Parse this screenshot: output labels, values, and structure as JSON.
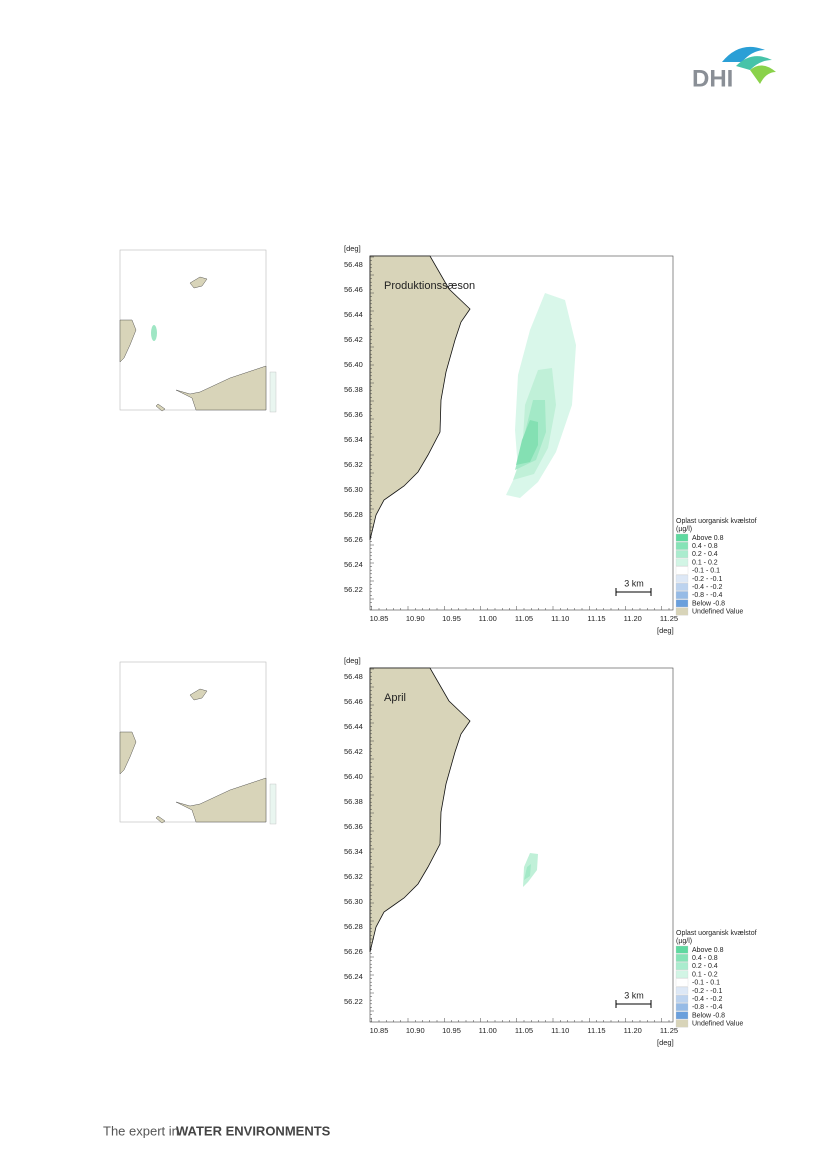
{
  "header": {
    "logo": "DHI"
  },
  "maps": [
    {
      "title": "Produktionssæson",
      "y_unit": "[deg]",
      "x_unit": "[deg]",
      "yticks": [
        "56.48",
        "56.46",
        "56.44",
        "56.42",
        "56.40",
        "56.38",
        "56.36",
        "56.34",
        "56.32",
        "56.30",
        "56.28",
        "56.26",
        "56.24",
        "56.22"
      ],
      "xticks": [
        "10.85",
        "10.90",
        "10.95",
        "11.00",
        "11.05",
        "11.10",
        "11.15",
        "11.20",
        "11.25"
      ],
      "scale_bar": "3 km",
      "legend": {
        "title": "Oplast uorganisk kvælstof",
        "unit": "(µg/l)",
        "items": [
          {
            "label": "Above  0.8",
            "color": "#5fd9a0"
          },
          {
            "label": "0.4 -  0.8",
            "color": "#86e3b7"
          },
          {
            "label": "0.2 -  0.4",
            "color": "#aaecce"
          },
          {
            "label": "0.1 -  0.2",
            "color": "#d2f5e5"
          },
          {
            "label": "-0.1 -  0.1",
            "color": "#ffffff"
          },
          {
            "label": "-0.2 - -0.1",
            "color": "#dde8f6"
          },
          {
            "label": "-0.4 - -0.2",
            "color": "#bcd3ef"
          },
          {
            "label": "-0.8 - -0.4",
            "color": "#96bbe6"
          },
          {
            "label": "Below -0.8",
            "color": "#6a9fdc"
          },
          {
            "label": "Undefined Value",
            "color": "#d8d4b9"
          }
        ]
      }
    },
    {
      "title": "April",
      "y_unit": "[deg]",
      "x_unit": "[deg]",
      "yticks": [
        "56.48",
        "56.46",
        "56.44",
        "56.42",
        "56.40",
        "56.38",
        "56.36",
        "56.34",
        "56.32",
        "56.30",
        "56.28",
        "56.26",
        "56.24",
        "56.22"
      ],
      "xticks": [
        "10.85",
        "10.90",
        "10.95",
        "11.00",
        "11.05",
        "11.10",
        "11.15",
        "11.20",
        "11.25"
      ],
      "scale_bar": "3 km",
      "legend": {
        "title": "Oplast uorganisk kvælstof",
        "unit": "(µg/l)",
        "items": [
          {
            "label": "Above  0.8",
            "color": "#5fd9a0"
          },
          {
            "label": "0.4 -  0.8",
            "color": "#86e3b7"
          },
          {
            "label": "0.2 -  0.4",
            "color": "#aaecce"
          },
          {
            "label": "0.1 -  0.2",
            "color": "#d2f5e5"
          },
          {
            "label": "-0.1 -  0.1",
            "color": "#ffffff"
          },
          {
            "label": "-0.2 - -0.1",
            "color": "#dde8f6"
          },
          {
            "label": "-0.4 - -0.2",
            "color": "#bcd3ef"
          },
          {
            "label": "-0.8 - -0.4",
            "color": "#96bbe6"
          },
          {
            "label": "Below -0.8",
            "color": "#6a9fdc"
          },
          {
            "label": "Undefined Value",
            "color": "#d8d4b9"
          }
        ]
      }
    }
  ],
  "footer": {
    "tagline_prefix": "The expert in",
    "tagline_emphasis": "WATER ENVIRONMENTS"
  }
}
